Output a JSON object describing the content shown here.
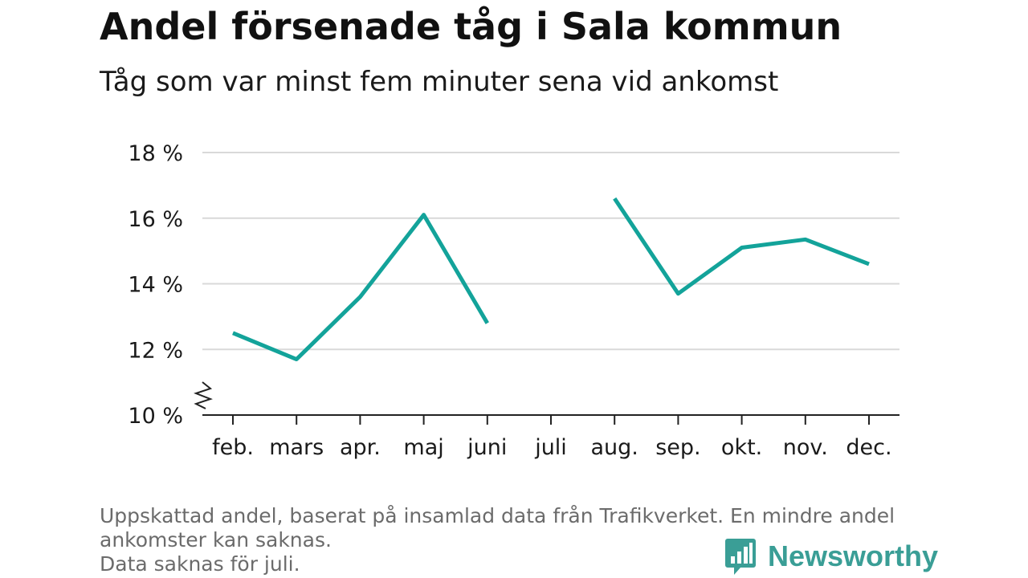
{
  "header": {
    "title": "Andel försenade tåg i Sala kommun",
    "subtitle": "Tåg som var minst fem minuter sena vid ankomst"
  },
  "chart_data": {
    "type": "line",
    "title": "Andel försenade tåg i Sala kommun",
    "subtitle": "Tåg som var minst fem minuter sena vid ankomst",
    "xlabel": "",
    "ylabel": "",
    "categories": [
      "feb.",
      "mars",
      "apr.",
      "maj",
      "juni",
      "juli",
      "aug.",
      "sep.",
      "okt.",
      "nov.",
      "dec."
    ],
    "series": [
      {
        "values": [
          12.5,
          11.7,
          13.6,
          16.1,
          12.8,
          null,
          16.6,
          13.7,
          15.1,
          15.35,
          14.6
        ],
        "color": "#13a39a"
      }
    ],
    "yticks": [
      10,
      12,
      14,
      16,
      18
    ],
    "ytick_labels": [
      "10 %",
      "12 %",
      "14 %",
      "16 %",
      "18 %"
    ],
    "ylim": [
      10,
      18
    ],
    "y_axis_break": true,
    "grid": true,
    "legend": "none"
  },
  "footnote": {
    "line1": "Uppskattad andel, baserat på insamlad data från Trafikverket. En mindre andel",
    "line2": "ankomster kan saknas.",
    "line3": "Data saknas för juli."
  },
  "brand": {
    "name": "Newsworthy",
    "icon": "bar-chart-speech-bubble-icon",
    "color": "#3a9e96"
  }
}
